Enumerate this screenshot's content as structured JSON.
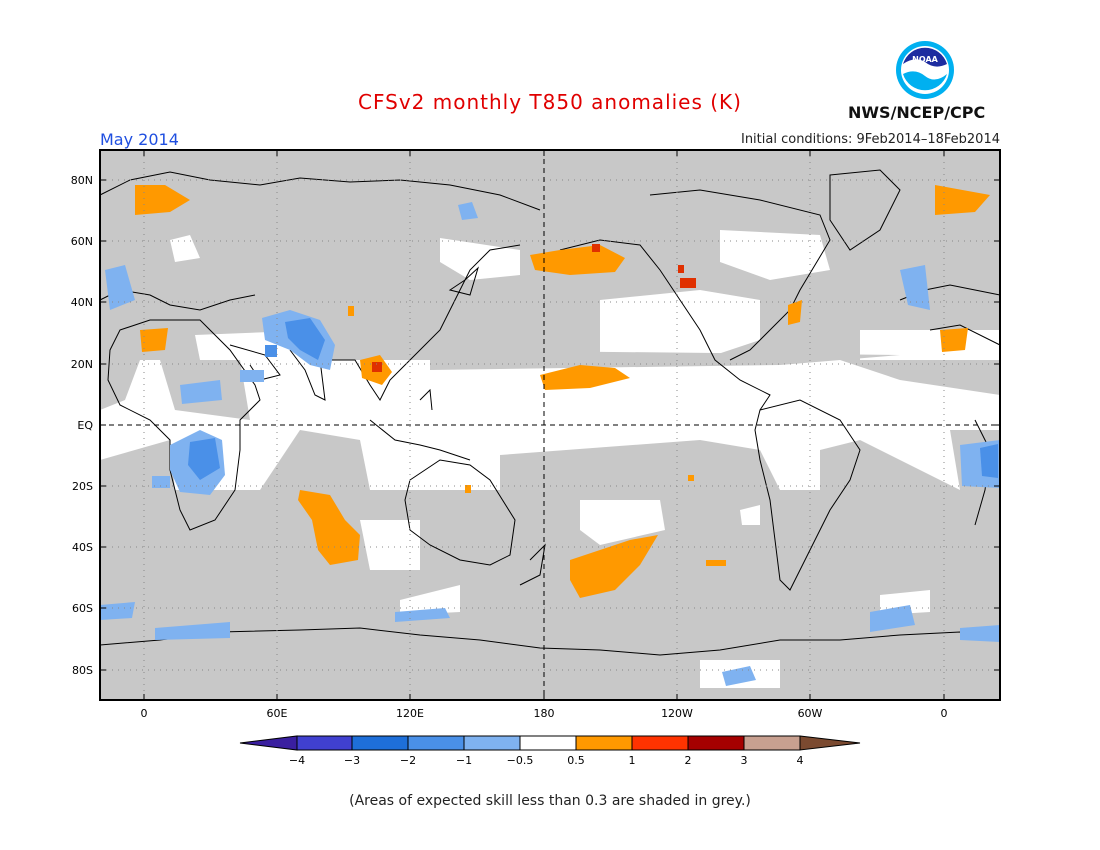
{
  "title": "CFSv2 monthly T850 anomalies (K)",
  "month": "May 2014",
  "initial_conditions": "Initial conditions: 9Feb2014–18Feb2014",
  "agency": "NWS/NCEP/CPC",
  "logo_text": "NOAA",
  "footnote": "(Areas of expected skill less than 0.3 are shaded in grey.)",
  "map": {
    "lat_labels": [
      "80N",
      "60N",
      "40N",
      "20N",
      "EQ",
      "20S",
      "40S",
      "60S",
      "80S"
    ],
    "lon_labels": [
      "0",
      "60E",
      "120E",
      "180",
      "120W",
      "60W",
      "0"
    ],
    "colors": {
      "grey": "#c8c8c8",
      "blue_light": "#7fb2f0",
      "blue": "#4a90e8",
      "blue_dark": "#1e6fd9",
      "orange": "#ff9900",
      "red": "#ff3300",
      "dark_red": "#a50000"
    }
  },
  "legend": {
    "tick_labels": [
      "−4",
      "−3",
      "−2",
      "−1",
      "−0.5",
      "0.5",
      "1",
      "2",
      "3",
      "4"
    ],
    "colors": [
      "#3a1fa0",
      "#4040d0",
      "#1e6fd9",
      "#4a90e8",
      "#7fb2f0",
      "#ffffff",
      "#ff9900",
      "#ff3300",
      "#a50000",
      "#c8a090",
      "#7b4a30"
    ]
  }
}
